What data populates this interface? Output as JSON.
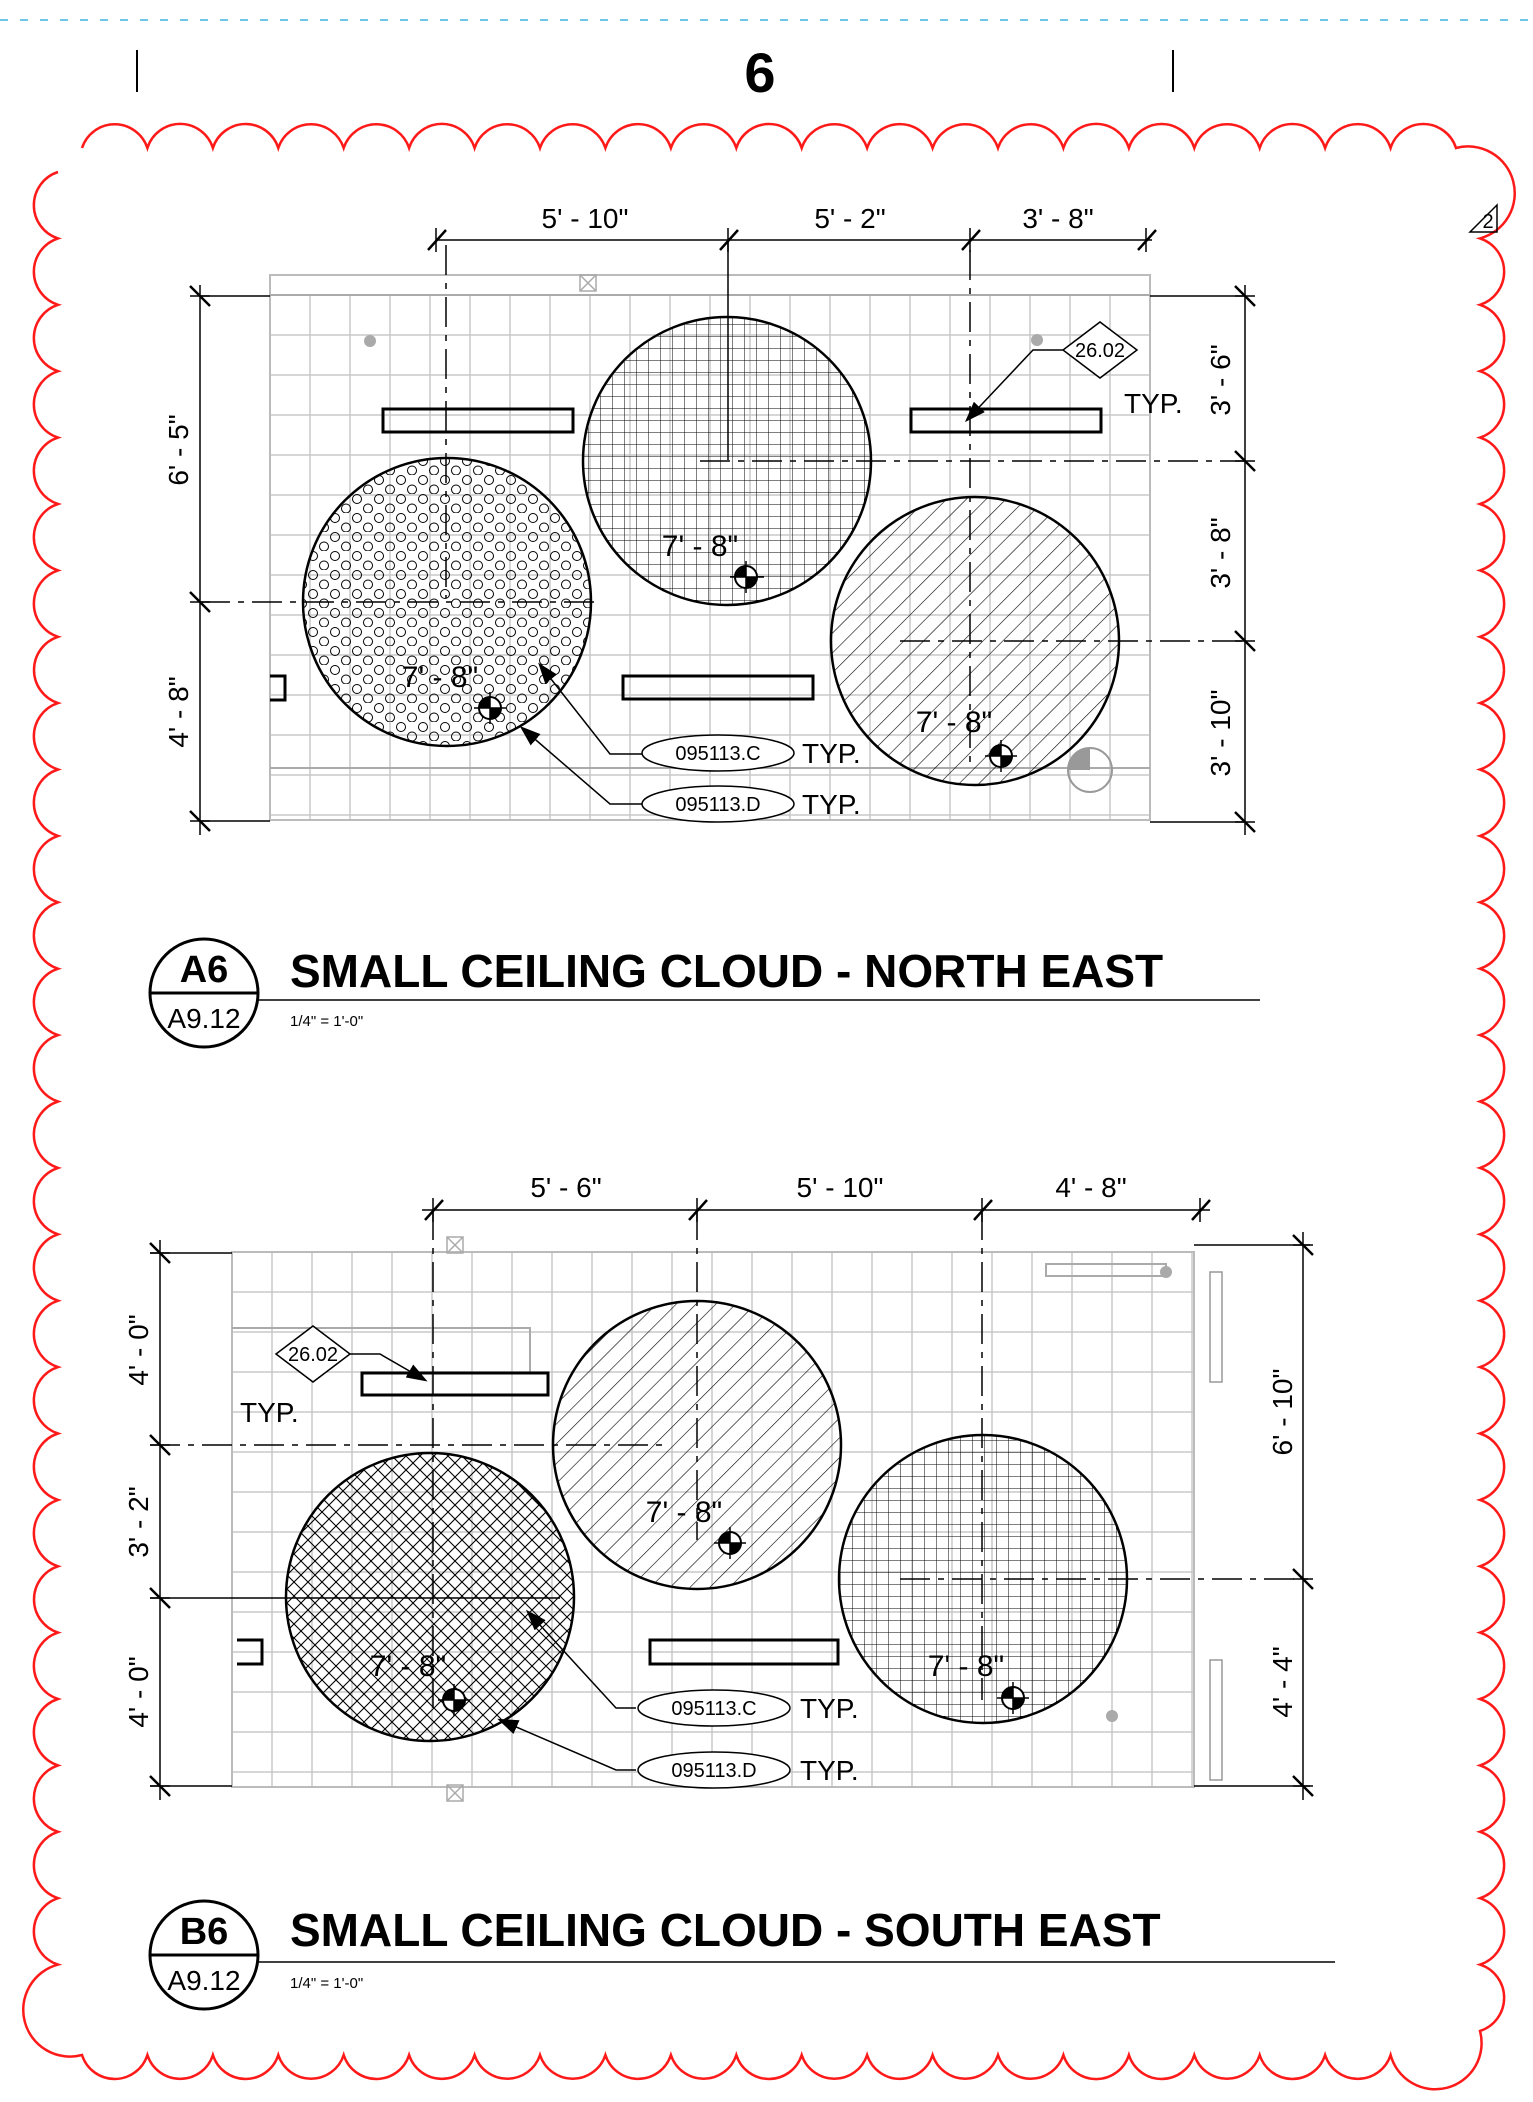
{
  "sheet_number": "6",
  "revision": "2",
  "details": [
    {
      "id": "a6",
      "number": "A6",
      "sheet": "A9.12",
      "title": "SMALL CEILING CLOUD - NORTH EAST",
      "scale": "1/4\" = 1'-0\"",
      "dims_top": [
        "5' - 10\"",
        "5' - 2\"",
        "3' - 8\""
      ],
      "dims_left": [
        "6' - 5\"",
        "4' - 8\""
      ],
      "dims_right": [
        "3' - 6\"",
        "3' - 8\"",
        "3' - 10\""
      ],
      "elevations": [
        "7' - 8\"",
        "7' - 8\"",
        "7' - 8\""
      ],
      "keynote": "26.02",
      "tags": [
        "095113.C",
        "095113.D"
      ],
      "typ": "TYP."
    },
    {
      "id": "b6",
      "number": "B6",
      "sheet": "A9.12",
      "title": "SMALL CEILING CLOUD - SOUTH EAST",
      "scale": "1/4\" = 1'-0\"",
      "dims_top": [
        "5' - 6\"",
        "5' - 10\"",
        "4' - 8\""
      ],
      "dims_left": [
        "4' - 0\"",
        "3' - 2\"",
        "4' - 0\""
      ],
      "dims_right": [
        "6' - 10\"",
        "4' - 4\""
      ],
      "elevations": [
        "7' - 8\"",
        "7' - 8\"",
        "7' - 8\""
      ],
      "keynote": "26.02",
      "tags": [
        "095113.C",
        "095113.D"
      ],
      "typ": "TYP."
    }
  ],
  "colors": {
    "revision_cloud": "#ff1a1a",
    "grid": "#c8c8c8",
    "ink": "#000000"
  }
}
